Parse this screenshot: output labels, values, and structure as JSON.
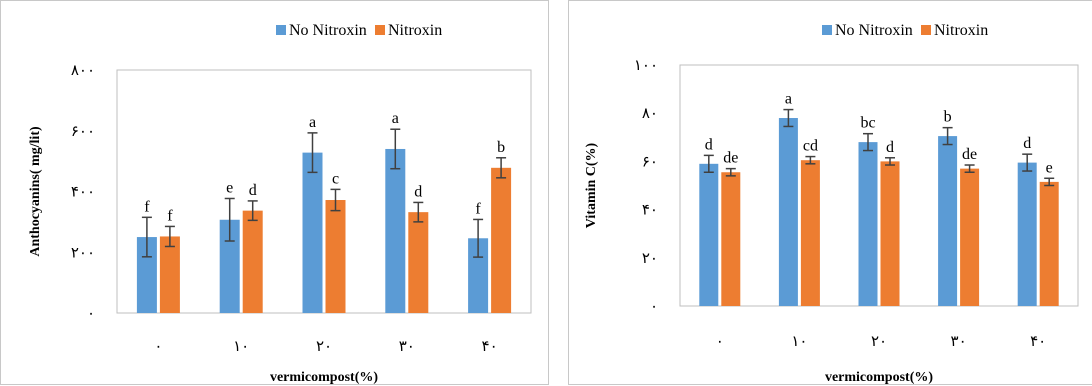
{
  "colors": {
    "series0": "#5B9BD5",
    "series1": "#ED7D31",
    "border": "#c8c8c8",
    "axis": "#bfbfbf",
    "errorbar": "#404040"
  },
  "chart_data": [
    {
      "type": "bar",
      "xlabel": "vermicompost(%)",
      "ylabel": "Anthocyanins( mg/lit)",
      "ylim": [
        0,
        800
      ],
      "yticks": [
        0,
        200,
        400,
        600,
        800
      ],
      "ytick_labels": [
        "٠",
        "٢٠٠",
        "۴٠٠",
        "۶٠٠",
        "٨٠٠"
      ],
      "categories": [
        "٠",
        "١٠",
        "٢٠",
        "٣٠",
        "۴٠"
      ],
      "legend": "top-right",
      "grid": false,
      "series": [
        {
          "name": "No Nitroxin",
          "values": [
            250,
            307,
            528,
            540,
            246
          ],
          "errors": [
            65,
            70,
            65,
            65,
            62
          ],
          "letters": [
            "f",
            "e",
            "a",
            "a",
            "f"
          ]
        },
        {
          "name": "Nitroxin",
          "values": [
            252,
            337,
            372,
            332,
            478
          ],
          "errors": [
            33,
            32,
            35,
            32,
            33
          ],
          "letters": [
            "f",
            "d",
            "c",
            "d",
            "b"
          ]
        }
      ]
    },
    {
      "type": "bar",
      "xlabel": "vermicompost(%)",
      "ylabel": "Vitamin C(%)",
      "ylim": [
        0,
        100
      ],
      "yticks": [
        0,
        20,
        40,
        60,
        80,
        100
      ],
      "ytick_labels": [
        "٠",
        "٢٠",
        "۴٠",
        "۶٠",
        "٨٠",
        "١٠٠"
      ],
      "categories": [
        "٠",
        "١٠",
        "٢٠",
        "٣٠",
        "۴٠"
      ],
      "legend": "top-right",
      "grid": false,
      "series": [
        {
          "name": "No Nitroxin",
          "values": [
            59,
            78,
            68,
            70.5,
            59.5
          ],
          "errors": [
            3.5,
            3.5,
            3.5,
            3.5,
            3.5
          ],
          "letters": [
            "d",
            "a",
            "bc",
            "b",
            "d"
          ]
        },
        {
          "name": "Nitroxin",
          "values": [
            55.5,
            60.5,
            60,
            57,
            51.5
          ],
          "errors": [
            1.5,
            1.5,
            1.5,
            1.5,
            1.5
          ],
          "letters": [
            "de",
            "cd",
            "d",
            "de",
            "e"
          ]
        }
      ]
    }
  ]
}
